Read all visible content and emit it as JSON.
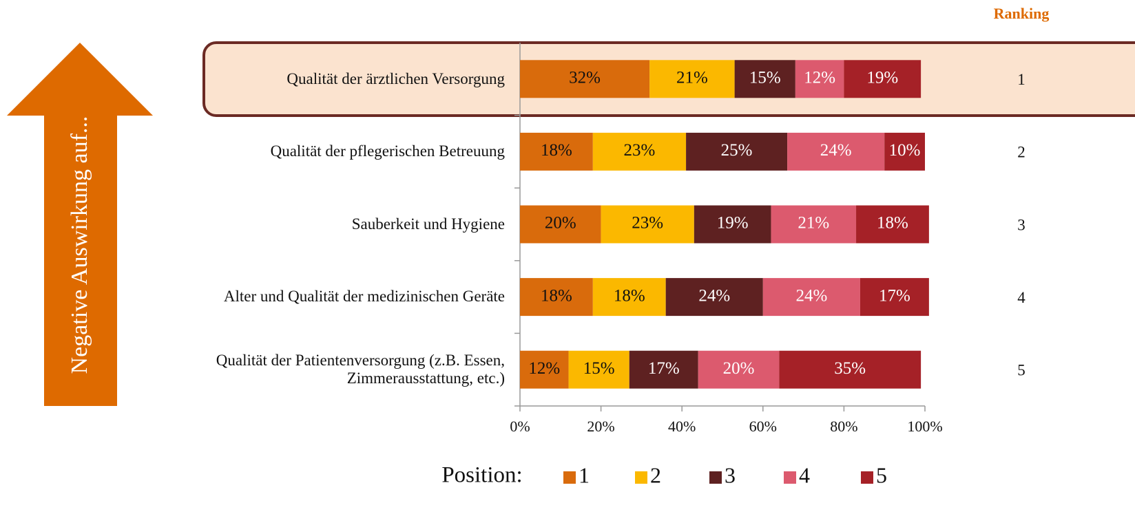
{
  "chart_data": {
    "type": "stacked_barh",
    "categories": [
      "Qualität der ärztlichen Versorgung",
      "Qualität der pflegerischen Betreuung",
      "Sauberkeit und Hygiene",
      "Alter und Qualität der medizinischen Geräte",
      "Qualität der Patientenversorgung (z.B. Essen, Zimmerausstattung, etc.)"
    ],
    "series": [
      {
        "name": "1",
        "color": "#d96b0c",
        "values": [
          32,
          18,
          20,
          18,
          12
        ],
        "value_labels": [
          "32%",
          "18%",
          "20%",
          "18%",
          "12%"
        ]
      },
      {
        "name": "2",
        "color": "#fbb800",
        "values": [
          21,
          23,
          23,
          18,
          15
        ],
        "value_labels": [
          "21%",
          "23%",
          "23%",
          "18%",
          "15%"
        ]
      },
      {
        "name": "3",
        "color": "#5e2121",
        "values": [
          15,
          25,
          19,
          24,
          17
        ],
        "value_labels": [
          "15%",
          "25%",
          "19%",
          "24%",
          "17%"
        ]
      },
      {
        "name": "4",
        "color": "#dc5a6e",
        "values": [
          12,
          24,
          21,
          24,
          20
        ],
        "value_labels": [
          "12%",
          "24%",
          "21%",
          "24%",
          "20%"
        ]
      },
      {
        "name": "5",
        "color": "#a52127",
        "values": [
          19,
          10,
          18,
          17,
          35
        ],
        "value_labels": [
          "19%",
          "10%",
          "18%",
          "17%",
          "35%"
        ]
      }
    ],
    "xlim": [
      0,
      100
    ],
    "xticks": [
      {
        "value": 0,
        "label": "0%"
      },
      {
        "value": 20,
        "label": "20%"
      },
      {
        "value": 40,
        "label": "40%"
      },
      {
        "value": 60,
        "label": "60%"
      },
      {
        "value": 80,
        "label": "80%"
      },
      {
        "value": 100,
        "label": "100%"
      }
    ],
    "legend_title": "Position:",
    "ranking_title": "Ranking",
    "ranks": [
      1,
      2,
      3,
      4,
      5
    ],
    "arrow_label": "Negative Auswirkung auf..."
  }
}
